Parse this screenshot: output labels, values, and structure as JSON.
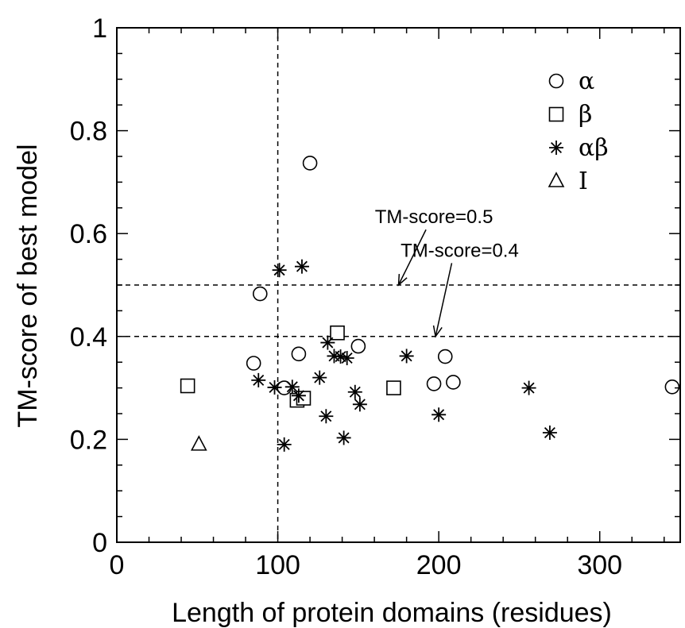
{
  "chart_data": {
    "type": "scatter",
    "title": "",
    "xlabel": "Length of protein domains (residues)",
    "ylabel": "TM-score of best model",
    "xlim": [
      0,
      350
    ],
    "ylim": [
      0,
      1
    ],
    "xticks": [
      0,
      100,
      200,
      300
    ],
    "xtick_labels": [
      "0",
      "100",
      "200",
      "300"
    ],
    "yticks": [
      0,
      0.2,
      0.4,
      0.6,
      0.8,
      1
    ],
    "ytick_labels": [
      "0",
      "0.2",
      "0.4",
      "0.6",
      "0.8",
      "1"
    ],
    "grid": false,
    "legend_position": "top-right",
    "series": [
      {
        "name": "α",
        "marker": "circle",
        "points": [
          [
            120,
            0.737
          ],
          [
            89,
            0.483
          ],
          [
            85,
            0.348
          ],
          [
            113,
            0.366
          ],
          [
            150,
            0.381
          ],
          [
            204,
            0.361
          ],
          [
            197,
            0.308
          ],
          [
            209,
            0.311
          ],
          [
            104,
            0.3
          ],
          [
            345,
            0.302
          ]
        ]
      },
      {
        "name": "β",
        "marker": "square",
        "points": [
          [
            137,
            0.407
          ],
          [
            44,
            0.304
          ],
          [
            112,
            0.276
          ],
          [
            116,
            0.28
          ],
          [
            172,
            0.3
          ]
        ]
      },
      {
        "name": "αβ",
        "marker": "asterisk",
        "points": [
          [
            101,
            0.529
          ],
          [
            115,
            0.536
          ],
          [
            131,
            0.388
          ],
          [
            135,
            0.362
          ],
          [
            139,
            0.361
          ],
          [
            143,
            0.358
          ],
          [
            180,
            0.362
          ],
          [
            88,
            0.315
          ],
          [
            98,
            0.301
          ],
          [
            109,
            0.302
          ],
          [
            126,
            0.32
          ],
          [
            148,
            0.292
          ],
          [
            151,
            0.268
          ],
          [
            113,
            0.285
          ],
          [
            130,
            0.245
          ],
          [
            141,
            0.203
          ],
          [
            104,
            0.19
          ],
          [
            200,
            0.248
          ],
          [
            256,
            0.3
          ],
          [
            269,
            0.213
          ]
        ]
      },
      {
        "name": "I",
        "marker": "triangle",
        "points": [
          [
            51,
            0.19
          ]
        ]
      }
    ],
    "reference_lines": [
      {
        "orientation": "horizontal",
        "value": 0.5
      },
      {
        "orientation": "horizontal",
        "value": 0.4
      },
      {
        "orientation": "vertical",
        "value": 100
      }
    ],
    "annotations": [
      {
        "text": "TM-score=0.5",
        "text_at": [
          197,
          0.62
        ],
        "arrow_to": [
          175,
          0.5
        ]
      },
      {
        "text": "TM-score=0.4",
        "text_at": [
          213,
          0.555
        ],
        "arrow_to": [
          198,
          0.4
        ]
      }
    ]
  }
}
